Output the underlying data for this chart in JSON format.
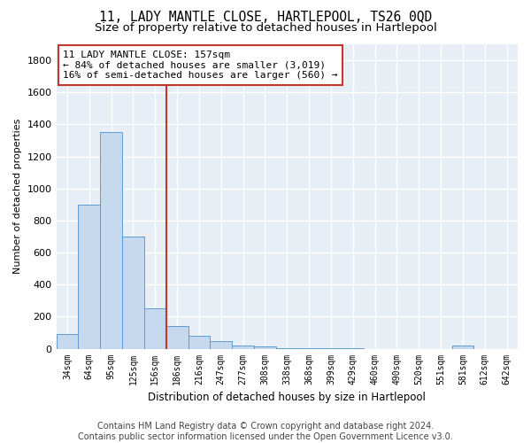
{
  "title": "11, LADY MANTLE CLOSE, HARTLEPOOL, TS26 0QD",
  "subtitle": "Size of property relative to detached houses in Hartlepool",
  "xlabel": "Distribution of detached houses by size in Hartlepool",
  "ylabel": "Number of detached properties",
  "bar_labels": [
    "34sqm",
    "64sqm",
    "95sqm",
    "125sqm",
    "156sqm",
    "186sqm",
    "216sqm",
    "247sqm",
    "277sqm",
    "308sqm",
    "338sqm",
    "368sqm",
    "399sqm",
    "429sqm",
    "460sqm",
    "490sqm",
    "520sqm",
    "551sqm",
    "581sqm",
    "612sqm",
    "642sqm"
  ],
  "bar_values": [
    90,
    900,
    1350,
    700,
    250,
    140,
    80,
    50,
    20,
    15,
    5,
    3,
    2,
    1,
    0,
    0,
    0,
    0,
    20,
    0,
    0
  ],
  "bar_color": "#c5d8ed",
  "bar_edge_color": "#5b9bd5",
  "vline_color": "#c0392b",
  "vline_x": 4.5,
  "annotation_text": "11 LADY MANTLE CLOSE: 157sqm\n← 84% of detached houses are smaller (3,019)\n16% of semi-detached houses are larger (560) →",
  "ylim": [
    0,
    1900
  ],
  "yticks": [
    0,
    200,
    400,
    600,
    800,
    1000,
    1200,
    1400,
    1600,
    1800
  ],
  "background_color": "#e8eef5",
  "grid_color": "#ffffff",
  "fig_background": "#ffffff",
  "footnote": "Contains HM Land Registry data © Crown copyright and database right 2024.\nContains public sector information licensed under the Open Government Licence v3.0.",
  "title_fontsize": 10.5,
  "subtitle_fontsize": 9.5,
  "annotation_fontsize": 8,
  "xtick_fontsize": 7,
  "ytick_fontsize": 8,
  "xlabel_fontsize": 8.5,
  "ylabel_fontsize": 8,
  "footnote_fontsize": 7,
  "annotation_box_color": "#ffffff",
  "annotation_box_edge_color": "#c0392b"
}
